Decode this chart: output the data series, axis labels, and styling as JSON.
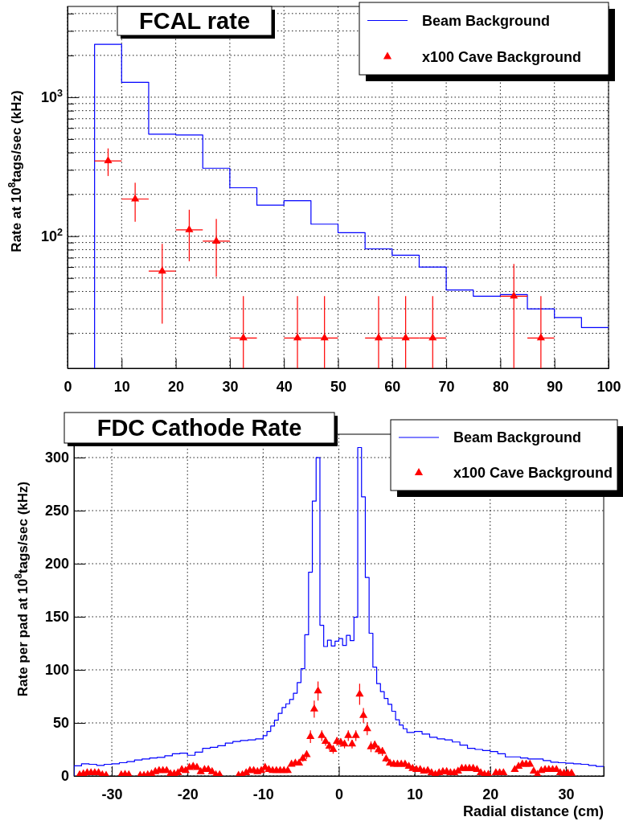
{
  "chart_data": [
    {
      "type": "histogram",
      "title": "FCAL rate",
      "ylabel": "Rate at 10$^{8}$tags/sec  (kHz)",
      "log": true,
      "grid": true,
      "legend": "top right",
      "marker": "triangle",
      "xlim": [
        0,
        100
      ],
      "xticks": [
        0,
        10,
        20,
        30,
        40,
        50,
        60,
        70,
        80,
        90,
        100
      ],
      "ylim": [
        11.2,
        4500
      ],
      "yticks": [
        {
          "value": 20,
          "label": null
        },
        {
          "value": 30,
          "label": null
        },
        {
          "value": 40,
          "label": null
        },
        {
          "value": 50,
          "label": null
        },
        {
          "value": 60,
          "label": null
        },
        {
          "value": 70,
          "label": null
        },
        {
          "value": 80,
          "label": null
        },
        {
          "value": 90,
          "label": null
        },
        {
          "value": 100,
          "label": "10$^{2}$"
        },
        {
          "value": 200,
          "label": null
        },
        {
          "value": 300,
          "label": null
        },
        {
          "value": 400,
          "label": null
        },
        {
          "value": 500,
          "label": null
        },
        {
          "value": 600,
          "label": null
        },
        {
          "value": 700,
          "label": null
        },
        {
          "value": 800,
          "label": null
        },
        {
          "value": 900,
          "label": null
        },
        {
          "value": 1000,
          "label": "10$^{3}$"
        },
        {
          "value": 2000,
          "label": null
        },
        {
          "value": 3000,
          "label": null
        },
        {
          "value": 4000,
          "label": null
        }
      ],
      "bins": [
        5,
        10,
        15,
        20,
        25,
        30,
        35,
        40,
        45,
        50,
        55,
        60,
        65,
        70,
        75,
        80,
        85,
        90,
        95,
        100
      ],
      "series": [
        {
          "name": "Beam Background",
          "color": "#0000ff",
          "values": [
            2400,
            1280,
            542,
            535,
            308,
            223,
            167,
            180,
            122,
            106,
            81,
            73,
            60,
            41,
            37,
            38,
            30,
            26,
            22
          ]
        },
        {
          "name": "x100 Cave Background",
          "type": "scatter",
          "color": "#ff0000",
          "x": [
            7.5,
            12.5,
            17.5,
            22.5,
            27.5,
            32.5,
            42.5,
            47.5,
            57.5,
            62.5,
            67.5,
            82.5,
            87.5
          ],
          "values": [
            348,
            185,
            56,
            111,
            92,
            18.5,
            18.5,
            18.5,
            18.5,
            18.5,
            18.5,
            37,
            18.5
          ],
          "errors": [
            [
              271,
              428
            ],
            [
              127,
              242
            ],
            [
              23.5,
              88
            ],
            [
              66,
              155
            ],
            [
              51,
              133
            ],
            [
              11.2,
              37
            ],
            [
              11.2,
              37
            ],
            [
              11.2,
              37
            ],
            [
              11.2,
              37
            ],
            [
              11.2,
              37
            ],
            [
              11.2,
              37
            ],
            [
              11.2,
              63
            ],
            [
              11.2,
              37
            ]
          ],
          "xerrors": [
            2.5,
            2.5,
            2.5,
            2.5,
            2.5,
            2.5,
            2.5,
            2.5,
            2.5,
            2.5,
            2.5,
            2.5,
            2.5
          ]
        }
      ]
    },
    {
      "type": "histogram",
      "title": "FDC Cathode Rate",
      "xlabel": "Radial distance (cm)",
      "ylabel": "Rate per pad at 10$^{8}$tags/sec  (kHz)",
      "grid": true,
      "legend": "top right",
      "marker": "triangle",
      "xlim": [
        -35,
        35
      ],
      "xticks": [
        -30,
        -20,
        -10,
        0,
        10,
        20,
        30
      ],
      "ylim": [
        0,
        322
      ],
      "yticks": [
        0,
        50,
        100,
        150,
        200,
        250,
        300
      ],
      "bins": [
        -35,
        -34.5,
        -34,
        -33.5,
        -33,
        -32.5,
        -32,
        -31.5,
        -31,
        -30.5,
        -30,
        -29.5,
        -29,
        -28.5,
        -28,
        -27.5,
        -27,
        -26.5,
        -26,
        -25.5,
        -25,
        -24.5,
        -24,
        -23.5,
        -23,
        -22.5,
        -22,
        -21.5,
        -21,
        -20.5,
        -20,
        -19.5,
        -19,
        -18.5,
        -18,
        -17.5,
        -17,
        -16.5,
        -16,
        -15.5,
        -15,
        -14.5,
        -14,
        -13.5,
        -13,
        -12.5,
        -12,
        -11.5,
        -11,
        -10.5,
        -10,
        -9.5,
        -9,
        -8.5,
        -8,
        -7.5,
        -7,
        -6.5,
        -6,
        -5.5,
        -5,
        -4.5,
        -4,
        -3.5,
        -3,
        -2.5,
        -2,
        -1.5,
        -1,
        -0.5,
        0,
        0.5,
        1,
        1.5,
        2,
        2.5,
        3,
        3.5,
        4,
        4.5,
        5,
        5.5,
        6,
        6.5,
        7,
        7.5,
        8,
        8.5,
        9,
        9.5,
        10,
        10.5,
        11,
        11.5,
        12,
        12.5,
        13,
        13.5,
        14,
        14.5,
        15,
        15.5,
        16,
        16.5,
        17,
        17.5,
        18,
        18.5,
        19,
        19.5,
        20,
        20.5,
        21,
        21.5,
        22,
        22.5,
        23,
        23.5,
        24,
        24.5,
        25,
        25.5,
        26,
        26.5,
        27,
        27.5,
        28,
        28.5,
        29,
        29.5,
        30,
        30.5,
        31,
        31.5,
        32,
        32.5,
        33,
        33.5,
        34,
        34.5,
        35
      ],
      "series": [
        {
          "name": "Beam Background",
          "color": "#0000ff",
          "values": [
            9.5,
            9.5,
            11.5,
            11.5,
            11,
            11,
            10,
            10,
            11,
            11,
            11.5,
            11.5,
            12.5,
            12.5,
            13.5,
            13.5,
            15,
            15,
            16,
            16,
            17,
            17,
            17.5,
            17.5,
            19,
            19,
            21,
            21,
            21.5,
            21.5,
            19.5,
            19.5,
            22.5,
            22.5,
            26,
            26,
            27,
            27,
            28.5,
            28.5,
            31,
            31,
            32.5,
            32.5,
            33.5,
            33.5,
            34,
            34,
            35,
            35,
            38,
            42,
            47,
            52.5,
            59,
            64.5,
            68,
            72,
            78,
            88,
            101,
            133,
            192,
            259,
            300,
            142,
            122,
            128,
            122.5,
            127,
            129.5,
            123,
            132.5,
            127.5,
            149.5,
            309.5,
            263,
            187,
            134.5,
            102.5,
            87,
            79.5,
            73,
            67.5,
            61,
            53,
            48,
            44.5,
            41,
            41,
            42,
            42,
            39.5,
            39.5,
            36.5,
            36.5,
            35,
            35,
            34,
            34,
            32,
            32,
            29,
            29,
            26,
            26,
            25,
            25,
            24,
            24,
            23,
            23,
            21,
            21,
            18,
            18,
            18,
            18,
            17,
            17,
            16,
            16,
            16,
            16,
            14.5,
            14.5,
            13,
            13,
            12.5,
            12.5,
            12,
            12,
            11.5,
            11.5,
            11,
            11,
            10,
            10,
            9,
            9
          ]
        },
        {
          "name": "x100 Cave Background",
          "type": "scatter",
          "color": "#ff0000",
          "x": [
            -34.25,
            -33.75,
            -33.25,
            -32.75,
            -32.25,
            -31.75,
            -31.25,
            -30.75,
            -28.75,
            -28.25,
            -27.75,
            -26.25,
            -25.75,
            -25.25,
            -24.75,
            -24.25,
            -23.75,
            -23.25,
            -22.75,
            -22.25,
            -21.75,
            -21.25,
            -20.75,
            -20.25,
            -19.75,
            -19.25,
            -18.75,
            -18.25,
            -17.75,
            -17.25,
            -16.75,
            -16.25,
            -15.75,
            -13.25,
            -12.75,
            -12.25,
            -11.75,
            -11.25,
            -10.75,
            -10.25,
            -9.75,
            -9.25,
            -8.75,
            -8.25,
            -7.75,
            -7.25,
            -6.75,
            -6.25,
            -5.75,
            -5.25,
            -4.75,
            -4.25,
            -3.75,
            -3.25,
            -2.75,
            -2.25,
            -1.75,
            -1.25,
            -0.75,
            -0.25,
            0.25,
            0.75,
            1.25,
            1.75,
            2.25,
            2.75,
            3.25,
            3.75,
            4.25,
            4.75,
            5.25,
            5.75,
            6.25,
            6.75,
            7.25,
            7.75,
            8.25,
            8.75,
            9.25,
            9.75,
            10.25,
            10.75,
            11.25,
            11.75,
            12.25,
            12.75,
            13.25,
            13.75,
            14.25,
            14.75,
            15.25,
            15.75,
            16.25,
            16.75,
            17.25,
            17.75,
            18.25,
            18.75,
            19.25,
            19.75,
            20.75,
            21.25,
            21.75,
            23.25,
            23.75,
            24.25,
            24.75,
            25.25,
            25.75,
            26.25,
            26.75,
            27.25,
            27.75,
            28.25,
            28.75,
            29.25,
            29.75,
            30.25,
            30.75
          ],
          "values": [
            1,
            2,
            3,
            3,
            3,
            3,
            1,
            0.5,
            1,
            1.5,
            1,
            0.5,
            0.5,
            1,
            2,
            4,
            5,
            5,
            5,
            2,
            2,
            3,
            6,
            5,
            8,
            9,
            8,
            4,
            6,
            6,
            4,
            1,
            1,
            0.5,
            1,
            3,
            5,
            5,
            4,
            5,
            8,
            6,
            5,
            5,
            5,
            5,
            5,
            11,
            12,
            12,
            16.5,
            20,
            37,
            63,
            80,
            38,
            32.5,
            28,
            25,
            32.5,
            31.5,
            30,
            38,
            30,
            38,
            77,
            57,
            44.5,
            27.5,
            29,
            24.5,
            23,
            16,
            12,
            11,
            11,
            11,
            11,
            9,
            7,
            6,
            6,
            4.5,
            5,
            3,
            1.5,
            3,
            4,
            4,
            3,
            3,
            4.5,
            7,
            7,
            7,
            7,
            6,
            3,
            1.5,
            1.5,
            3,
            3,
            3,
            6,
            9,
            11,
            11,
            11,
            4.5,
            1.5,
            5,
            6,
            6,
            6,
            6,
            3,
            2.5,
            2.5,
            2.5
          ],
          "errors": [
            null,
            null,
            null,
            null,
            null,
            null,
            null,
            null,
            null,
            null,
            null,
            null,
            null,
            null,
            null,
            null,
            null,
            null,
            null,
            null,
            null,
            null,
            null,
            null,
            null,
            null,
            null,
            null,
            null,
            null,
            null,
            null,
            null,
            null,
            null,
            null,
            null,
            null,
            null,
            null,
            null,
            null,
            null,
            null,
            null,
            null,
            null,
            null,
            null,
            null,
            3,
            4,
            6,
            8,
            9,
            5,
            4,
            4,
            4,
            4,
            4,
            4,
            5,
            4,
            5,
            10,
            7,
            6,
            5,
            4,
            4,
            4,
            3,
            null,
            null,
            null,
            null,
            null,
            null,
            null,
            null,
            null,
            null,
            null,
            null,
            null,
            null,
            null,
            null,
            null,
            null,
            null,
            null,
            null,
            null,
            null,
            null,
            null,
            null,
            null,
            null,
            null,
            null,
            null,
            null,
            null,
            null,
            null,
            null,
            null,
            null,
            null,
            null,
            null,
            null,
            null,
            null,
            null,
            null
          ]
        }
      ]
    }
  ]
}
